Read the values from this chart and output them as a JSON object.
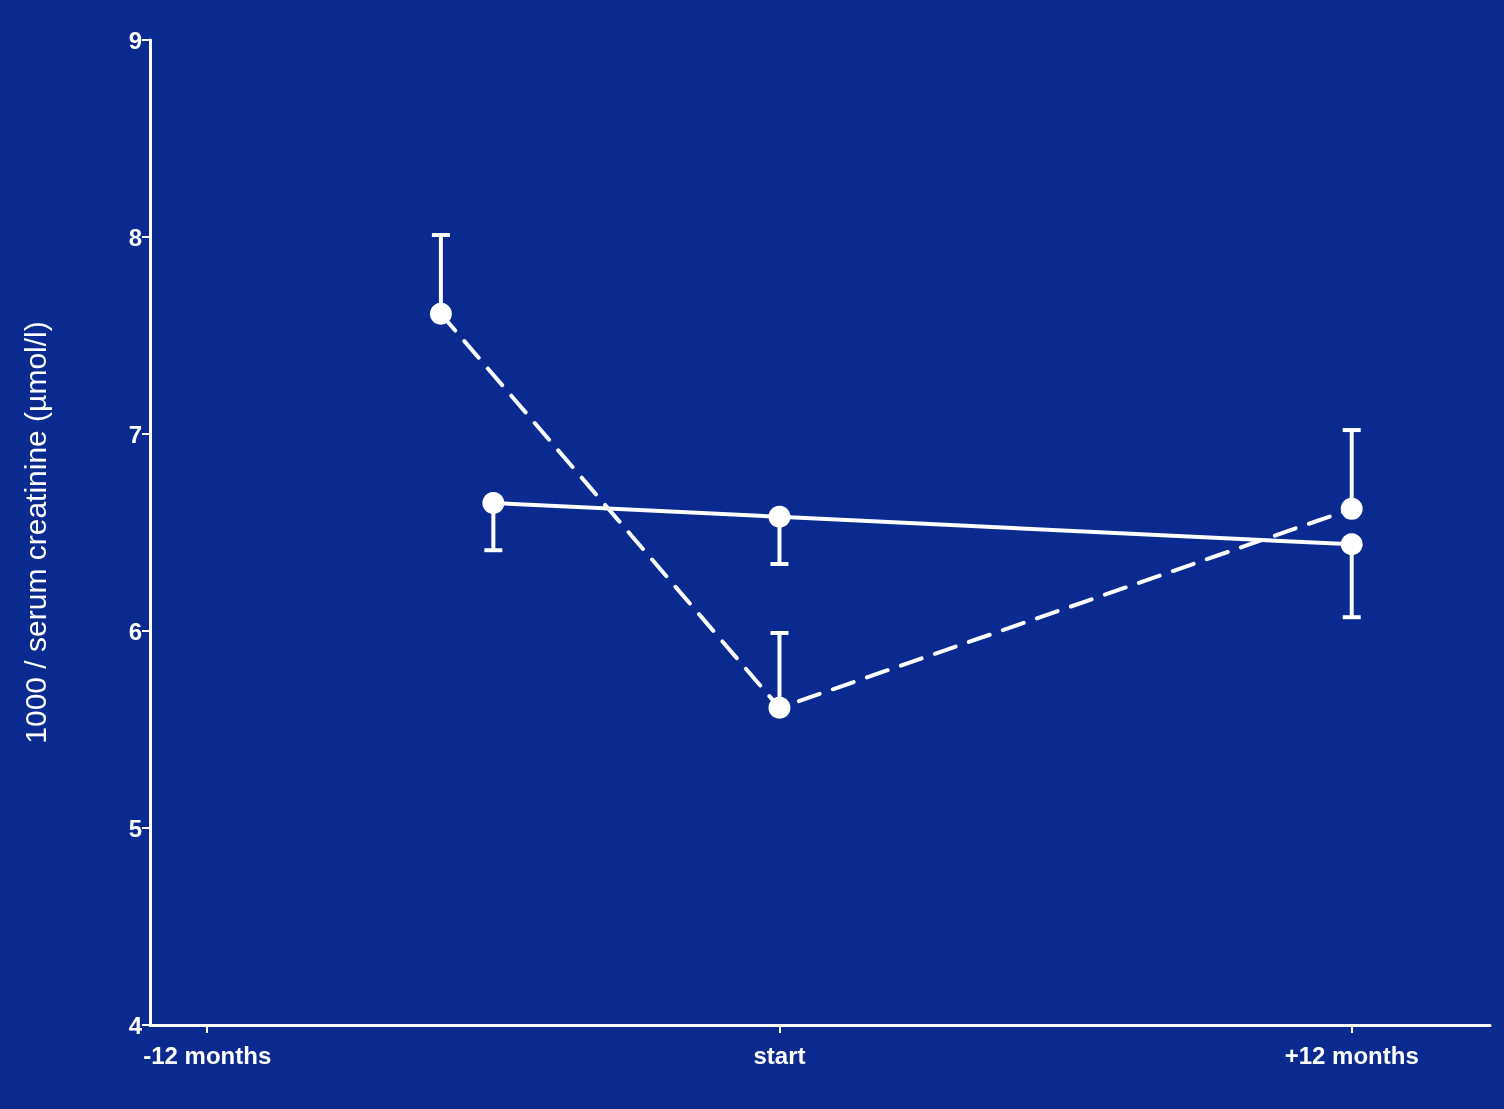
{
  "chart_data": {
    "type": "line",
    "ylabel": "1000 / serum creatinine (µmol/l)",
    "xlim": [
      -13.2,
      14.9
    ],
    "xticks": [
      {
        "value": -12,
        "label": "-12 months"
      },
      {
        "value": 0,
        "label": "start"
      },
      {
        "value": 12,
        "label": "+12 months"
      }
    ],
    "ylim": [
      4,
      9
    ],
    "yticks": [
      4,
      5,
      6,
      7,
      8,
      9
    ],
    "grid": false,
    "marker": "circle",
    "series": [
      {
        "color": "#ffffff",
        "line_style": "dashed",
        "x": [
          -7.1,
          0,
          12
        ],
        "values": [
          7.61,
          5.61,
          6.62
        ],
        "errors": [
          [
            7.61,
            8.01
          ],
          [
            5.61,
            5.99
          ],
          [
            6.62,
            7.02
          ]
        ]
      },
      {
        "color": "#ffffff",
        "line_style": "solid",
        "x": [
          -6,
          0,
          12
        ],
        "values": [
          6.65,
          6.58,
          6.44
        ],
        "errors": [
          [
            6.41,
            6.65
          ],
          [
            6.34,
            6.58
          ],
          [
            6.07,
            6.44
          ]
        ]
      }
    ]
  }
}
